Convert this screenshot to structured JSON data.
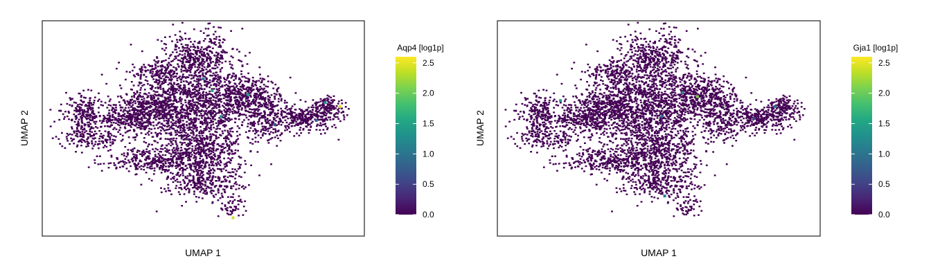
{
  "chart_data": [
    {
      "type": "scatter",
      "subtype": "umap-expression",
      "xlabel": "UMAP 1",
      "ylabel": "UMAP 2",
      "colorbar": {
        "title": "Aqp4 [log1p]",
        "colormap": "viridis",
        "range": [
          0.0,
          2.6
        ],
        "ticks": [
          0.0,
          0.5,
          1.0,
          1.5,
          2.0,
          2.5
        ],
        "tick_labels": [
          "0.0",
          "0.5",
          "1.0",
          "1.5",
          "2.0",
          "2.5"
        ]
      },
      "x_ticks_visible": false,
      "y_ticks_visible": false,
      "grid": false,
      "highlight_points": [
        {
          "x": 6.5,
          "y": 8.7,
          "value": 1.4
        },
        {
          "x": 9.1,
          "y": 8.3,
          "value": 1.3
        },
        {
          "x": 8.8,
          "y": 7.4,
          "value": 0.8
        },
        {
          "x": 5.6,
          "y": 7.6,
          "value": 1.2
        },
        {
          "x": 5.3,
          "y": 8.9,
          "value": 1.5
        },
        {
          "x": 9.6,
          "y": 8.1,
          "value": 2.5
        },
        {
          "x": 6.0,
          "y": 2.5,
          "value": 2.4
        },
        {
          "x": 5.0,
          "y": 9.5,
          "value": 0.9
        },
        {
          "x": 7.4,
          "y": 7.2,
          "value": 0.7
        }
      ]
    },
    {
      "type": "scatter",
      "subtype": "umap-expression",
      "xlabel": "UMAP 1",
      "ylabel": "UMAP 2",
      "colorbar": {
        "title": "Gja1 [log1p]",
        "colormap": "viridis",
        "range": [
          0.0,
          2.6
        ],
        "ticks": [
          0.0,
          0.5,
          1.0,
          1.5,
          2.0,
          2.5
        ],
        "tick_labels": [
          "0.0",
          "0.5",
          "1.0",
          "1.5",
          "2.0",
          "2.5"
        ]
      },
      "x_ticks_visible": false,
      "y_ticks_visible": false,
      "grid": false,
      "highlight_points": [
        {
          "x": 6.3,
          "y": 8.6,
          "value": 2.1
        },
        {
          "x": 5.8,
          "y": 8.8,
          "value": 1.2
        },
        {
          "x": 8.9,
          "y": 8.1,
          "value": 1.0
        },
        {
          "x": 5.1,
          "y": 7.6,
          "value": 0.9
        },
        {
          "x": 1.7,
          "y": 8.4,
          "value": 1.4
        },
        {
          "x": 5.2,
          "y": 3.6,
          "value": 1.1
        },
        {
          "x": 8.2,
          "y": 7.5,
          "value": 0.6
        }
      ]
    }
  ]
}
